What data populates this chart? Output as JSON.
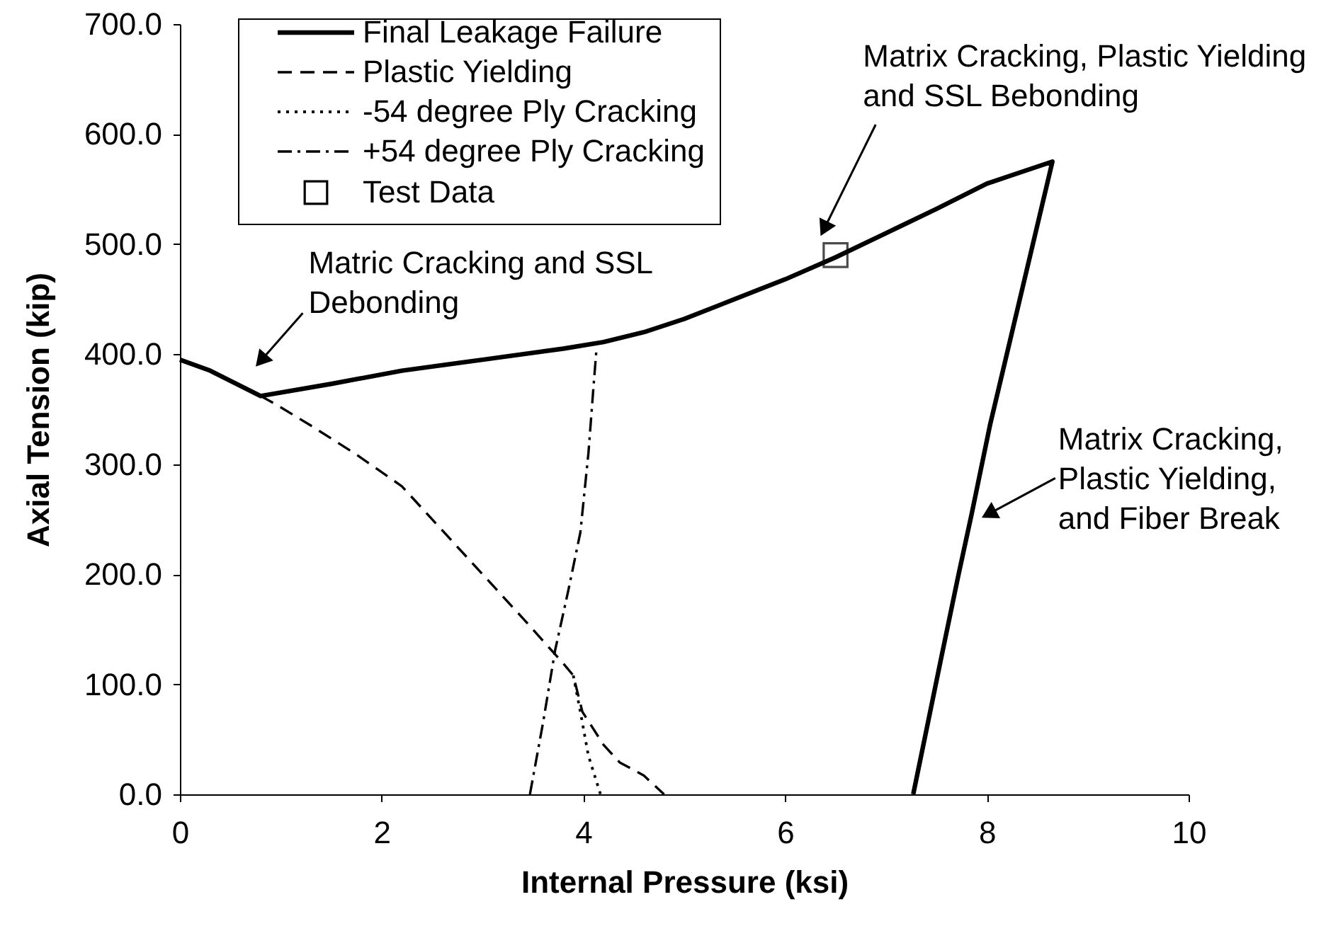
{
  "chart_data": {
    "type": "line",
    "xlabel": "Internal Pressure (ksi)",
    "ylabel": "Axial Tension (kip)",
    "xlim": [
      0,
      10
    ],
    "xticks": [
      0,
      2,
      4,
      6,
      8,
      10
    ],
    "ylim": [
      0,
      700
    ],
    "yticks": [
      {
        "value": 0,
        "label": "0.0"
      },
      {
        "value": 100,
        "label": "100.0"
      },
      {
        "value": 200,
        "label": "200.0"
      },
      {
        "value": 300,
        "label": "300.0"
      },
      {
        "value": 400,
        "label": "400.0"
      },
      {
        "value": 500,
        "label": "500.0"
      },
      {
        "value": 600,
        "label": "600.0"
      },
      {
        "value": 700,
        "label": "700.0"
      }
    ],
    "grid": false,
    "legend": "top left",
    "series": [
      {
        "name": "Final Leakage Failure",
        "color": "#000000",
        "line_style": "solid",
        "x": [
          0,
          0.3,
          0.8,
          1.5,
          2.2,
          3.0,
          3.8,
          4.2,
          4.6,
          5.0,
          5.5,
          6.0,
          6.5,
          7.0,
          7.5,
          8.0,
          8.65,
          8.03,
          7.85,
          7.72,
          7.55,
          7.27
        ],
        "values": [
          395,
          385,
          362,
          373,
          385,
          395,
          405,
          411,
          420,
          432,
          450,
          468,
          488,
          510,
          532,
          555,
          575,
          335,
          255,
          200,
          125,
          0
        ]
      },
      {
        "name": "Plastic Yielding",
        "color": "#000000",
        "line_style": "dashed",
        "x": [
          0.8,
          0.94,
          1.3,
          1.73,
          2.2,
          2.6,
          3.0,
          3.4,
          3.8,
          3.9,
          3.99,
          4.2,
          4.36,
          4.6,
          4.8
        ],
        "values": [
          362,
          355,
          335,
          310,
          280,
          240,
          200,
          160,
          119,
          108,
          75,
          45,
          29,
          17,
          0
        ]
      },
      {
        "name": "-54 degree Ply Cracking",
        "color": "#000000",
        "line_style": "dotted",
        "x": [
          3.9,
          3.97,
          4.05,
          4.17
        ],
        "values": [
          108,
          75,
          35,
          0
        ]
      },
      {
        "name": "+54 degree Ply Cracking",
        "color": "#000000",
        "line_style": "dashdot",
        "x": [
          3.47,
          3.6,
          3.72,
          3.85,
          3.97,
          4.05,
          4.1,
          4.13
        ],
        "values": [
          0,
          65,
          131,
          185,
          238,
          310,
          370,
          405
        ]
      },
      {
        "name": "Test Data",
        "type": "scatter",
        "marker": "square",
        "color": "#000000",
        "x": [
          6.5
        ],
        "values": [
          490
        ]
      }
    ],
    "annotations": [
      {
        "text": "Matric Cracking and SSL Debonding",
        "x": 0.6,
        "y": 373
      },
      {
        "text": "Matrix Cracking, Plastic Yielding and SSL Bebonding",
        "x": 6.35,
        "y": 507
      },
      {
        "text": "Matrix Cracking, Plastic Yielding, and Fiber Break",
        "x": 7.92,
        "y": 250
      }
    ]
  }
}
